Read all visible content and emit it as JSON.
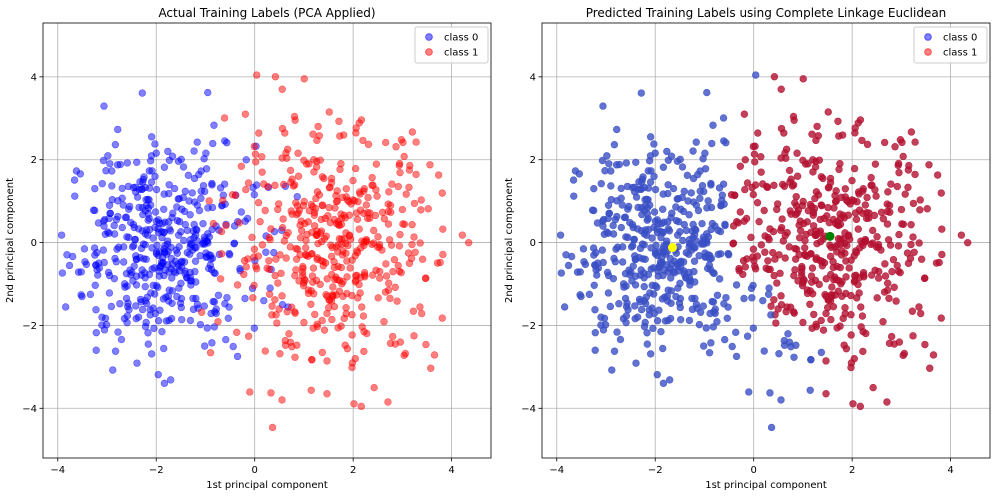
{
  "chart_data": [
    {
      "type": "scatter",
      "title": "Actual Training Labels (PCA Applied)",
      "xlabel": "1st principal component",
      "ylabel": "2nd principal component",
      "xlim": [
        -4.3,
        4.8
      ],
      "ylim": [
        -5.2,
        5.3
      ],
      "xticks": [
        -4,
        -2,
        0,
        2,
        4
      ],
      "yticks": [
        -4,
        -2,
        0,
        2,
        4
      ],
      "xtick_labels": [
        "−4",
        "−2",
        "0",
        "2",
        "4"
      ],
      "ytick_labels": [
        "−4",
        "−2",
        "0",
        "2",
        "4"
      ],
      "grid": true,
      "legend": "top-right",
      "series": [
        {
          "name": "class 0",
          "color": "#0000ff",
          "alpha": 0.5,
          "cluster": {
            "center": [
              -1.9,
              -0.1
            ],
            "spread": [
              0.95,
              1.25
            ],
            "count": 480
          }
        },
        {
          "name": "class 1",
          "color": "#ff0000",
          "alpha": 0.5,
          "cluster": {
            "center": [
              1.6,
              -0.1
            ],
            "spread": [
              1.05,
              1.45
            ],
            "count": 480
          }
        }
      ]
    },
    {
      "type": "scatter",
      "title": "Predicted Training Labels using Complete Linkage Euclidean",
      "xlabel": "1st principal component",
      "ylabel": "2nd principal component",
      "xlim": [
        -4.3,
        4.8
      ],
      "ylim": [
        -5.2,
        5.3
      ],
      "xticks": [
        -4,
        -2,
        0,
        2,
        4
      ],
      "yticks": [
        -4,
        -2,
        0,
        2,
        4
      ],
      "xtick_labels": [
        "−4",
        "−2",
        "0",
        "2",
        "4"
      ],
      "ytick_labels": [
        "−4",
        "−2",
        "0",
        "2",
        "4"
      ],
      "grid": true,
      "legend": "top-right",
      "legend_entries": [
        {
          "name": "class 0",
          "color": "#0000ff"
        },
        {
          "name": "class 1",
          "color": "#ff0000"
        }
      ],
      "point_colors": {
        "cluster_a": "#3a4fc4",
        "cluster_b": "#b3102f"
      },
      "centroids": [
        {
          "x": -1.65,
          "y": -0.12,
          "color": "#ffff00"
        },
        {
          "x": 1.55,
          "y": 0.15,
          "color": "#008000"
        }
      ],
      "split": {
        "x": -0.45,
        "y_top": 0.7,
        "y_mid": -0.8
      }
    }
  ]
}
